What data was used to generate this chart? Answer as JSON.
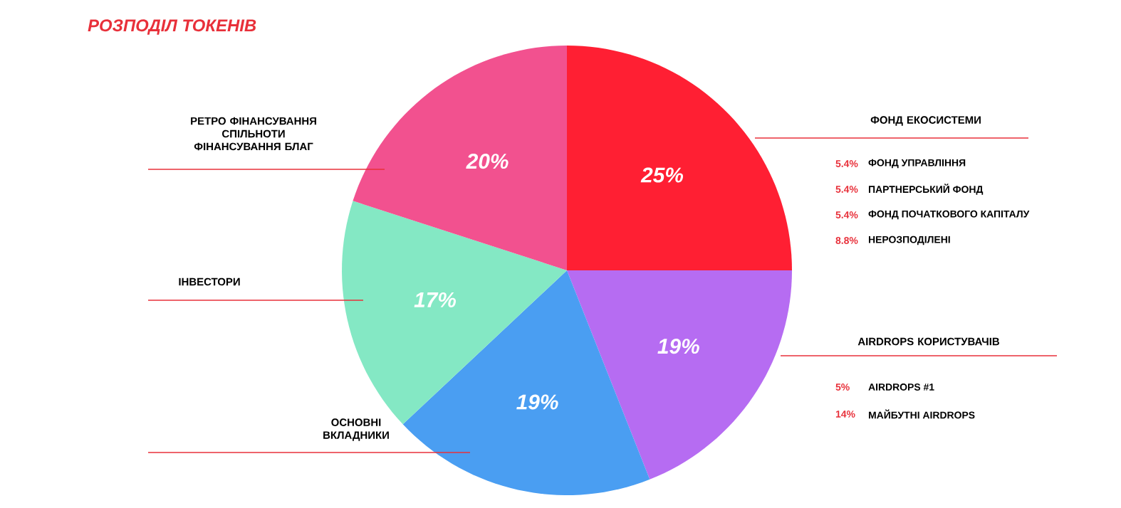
{
  "chart_data": {
    "type": "pie",
    "title": "РОЗПОДІЛ ТОКЕНІВ",
    "categories": [
      "ФОНД ЕКОСИСТЕМИ",
      "AIRDROPS КОРИСТУВАЧІВ",
      "ОСНОВНІ ВКЛАДНИКИ",
      "ІНВЕСТОРИ",
      "РЕТРО ФІНАНСУВАННЯ СПІЛЬНОТИ ФІНАНСУВАННЯ БЛАГ"
    ],
    "values": [
      25,
      19,
      19,
      17,
      20
    ],
    "value_labels": [
      "25%",
      "19%",
      "19%",
      "17%",
      "20%"
    ],
    "colors": [
      "#ff1f33",
      "#b66cf2",
      "#4a9ef2",
      "#84e8c4",
      "#f2518f"
    ],
    "annotations": [
      "5.4%",
      "ФОНД УПРАВЛІННЯ",
      "5.4%",
      "ПАРТНЕРСЬКИЙ ФОНД",
      "5.4%",
      "ФОНД ПОЧАТКОВОГО КАПІТАЛУ",
      "8.8%",
      "НЕРОЗПОДІЛЕНІ",
      "5%",
      "AIRDROPS #1",
      "14%",
      "МАЙБУТНІ AIRDROPS"
    ]
  }
}
